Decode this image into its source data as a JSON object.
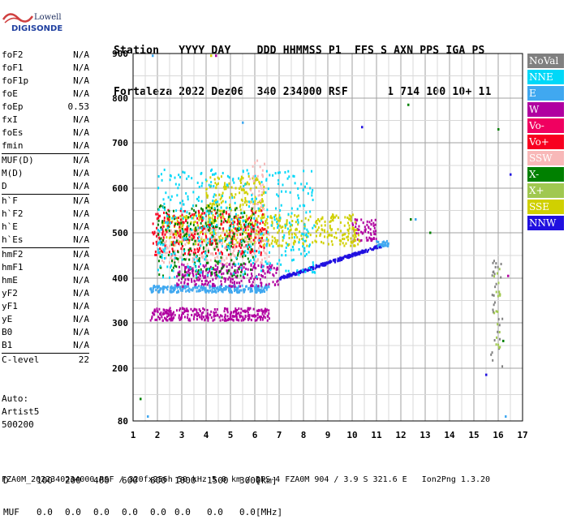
{
  "logo": {
    "line1": "Lowell",
    "line2": "DIGISONDE"
  },
  "header": {
    "labels": "Station   YYYY DAY    DDD HHMMSS P1  FFS S AXN PPS IGA PS",
    "values": "Fortaleza 2022 Dez06  340 234000 RSF      1 714 100 10+ 11"
  },
  "params": [
    {
      "name": "foF2",
      "value": "N/A"
    },
    {
      "name": "foF1",
      "value": "N/A"
    },
    {
      "name": "foF1p",
      "value": "N/A"
    },
    {
      "name": "foE",
      "value": "N/A"
    },
    {
      "name": "foEp",
      "value": "0.53"
    },
    {
      "name": "fxI",
      "value": "N/A"
    },
    {
      "name": "foEs",
      "value": "N/A"
    },
    {
      "name": "fmin",
      "value": "N/A"
    },
    {
      "sep": true
    },
    {
      "name": "MUF(D)",
      "value": "N/A"
    },
    {
      "name": "M(D)",
      "value": "N/A"
    },
    {
      "name": "D",
      "value": "N/A"
    },
    {
      "sep": true
    },
    {
      "name": "h`F",
      "value": "N/A"
    },
    {
      "name": "h`F2",
      "value": "N/A"
    },
    {
      "name": "h`E",
      "value": "N/A"
    },
    {
      "name": "h`Es",
      "value": "N/A"
    },
    {
      "sep": true
    },
    {
      "name": "hmF2",
      "value": "N/A"
    },
    {
      "name": "hmF1",
      "value": "N/A"
    },
    {
      "name": "hmE",
      "value": "N/A"
    },
    {
      "name": "yF2",
      "value": "N/A"
    },
    {
      "name": "yF1",
      "value": "N/A"
    },
    {
      "name": "yE",
      "value": "N/A"
    },
    {
      "name": "B0",
      "value": "N/A"
    },
    {
      "name": "B1",
      "value": "N/A"
    },
    {
      "sep": true
    },
    {
      "name": "C-level",
      "value": "22"
    }
  ],
  "auto": {
    "line1": "Auto:",
    "line2": "Artist5",
    "line3": "500200"
  },
  "legend": [
    {
      "label": "NoVal",
      "color": "#808080"
    },
    {
      "label": "NNE",
      "color": "#00d8f8"
    },
    {
      "label": "E",
      "color": "#40a8f0"
    },
    {
      "label": "W",
      "color": "#b000a0"
    },
    {
      "label": "Vo-",
      "color": "#f00060"
    },
    {
      "label": "Vo+",
      "color": "#f80020"
    },
    {
      "label": "SSW",
      "color": "#f8b8b8"
    },
    {
      "label": "X-",
      "color": "#008000"
    },
    {
      "label": "X+",
      "color": "#a0c850"
    },
    {
      "label": "SSE",
      "color": "#d0d000"
    },
    {
      "label": "NNW",
      "color": "#2010e0"
    }
  ],
  "footer": {
    "d_label": "D",
    "d_values": [
      "100",
      "200",
      "400",
      "600",
      "800",
      "1000",
      "1500",
      "3000"
    ],
    "d_unit": "[km]",
    "muf_label": "MUF",
    "muf_values": [
      "0.0",
      "0.0",
      "0.0",
      "0.0",
      "0.0",
      "0.0",
      "0.0",
      "0.0"
    ],
    "muf_unit": "[MHz]",
    "bottom": "FZA0M_2022340234000.RSF / 320fx256h 50 kHz 5.0 km / DPS-4 FZA0M 904 / 3.9 S 321.6 E   Ion2Png 1.3.20"
  },
  "chart_data": {
    "type": "scatter",
    "xlabel": "",
    "ylabel": "",
    "xlim": [
      1,
      17
    ],
    "ylim": [
      80,
      900
    ],
    "xticks": [
      1,
      2,
      3,
      4,
      5,
      6,
      7,
      8,
      9,
      10,
      11,
      12,
      13,
      14,
      15,
      16,
      17
    ],
    "yticks": [
      80,
      200,
      300,
      400,
      500,
      600,
      700,
      800,
      900
    ],
    "grid": true,
    "legend_position": "right",
    "traces": [
      {
        "name": "NNW",
        "color": "#2010e0",
        "x_range": [
          7.0,
          11.3
        ],
        "y_start": 398,
        "y_end": 472,
        "slope": true
      },
      {
        "name": "E",
        "color": "#40a8f0",
        "x_range": [
          1.7,
          6.6
        ],
        "y_center": 375,
        "y_spread": 8
      },
      {
        "name": "W",
        "color": "#b000a0",
        "x_range": [
          1.7,
          6.6
        ],
        "y_center": 318,
        "y_spread": 14
      },
      {
        "name": "W",
        "color": "#b000a0",
        "x_range": [
          2.8,
          7.0
        ],
        "y_center": 405,
        "y_spread": 25
      },
      {
        "name": "W",
        "color": "#b000a0",
        "x_range": [
          10.0,
          11.0
        ],
        "y_center": 505,
        "y_spread": 25
      },
      {
        "name": "SSE",
        "color": "#d0d000",
        "x_range": [
          2.2,
          10.3
        ],
        "y_center": 505,
        "y_spread": 35
      },
      {
        "name": "SSW",
        "color": "#f8b8b8",
        "x_range": [
          2.0,
          6.6
        ],
        "y_center": 470,
        "y_spread": 40
      },
      {
        "name": "SSE",
        "color": "#d0d000",
        "x_range": [
          4.0,
          6.4
        ],
        "y_center": 585,
        "y_spread": 40
      },
      {
        "name": "SSW",
        "color": "#f8b8b8",
        "x_range": [
          5.8,
          6.4
        ],
        "y_center": 600,
        "y_spread": 60
      },
      {
        "name": "Vo+",
        "color": "#f80020",
        "x_range": [
          1.8,
          6.5
        ],
        "y_center": 500,
        "y_spread": 50
      },
      {
        "name": "X-",
        "color": "#008000",
        "x_range": [
          2.0,
          6.0
        ],
        "y_center": 480,
        "y_spread": 80
      },
      {
        "name": "NNE",
        "color": "#00d8f8",
        "x_range": [
          2.0,
          8.5
        ],
        "y_center": 520,
        "y_spread": 120
      },
      {
        "name": "E",
        "color": "#40a8f0",
        "x_range": [
          11.0,
          11.5
        ],
        "y_center": 475,
        "y_spread": 6
      },
      {
        "name": "NoVal",
        "color": "#808080",
        "x_range": [
          15.7,
          16.2
        ],
        "y_center": 320,
        "y_spread": 120
      },
      {
        "name": "X+",
        "color": "#a0c850",
        "x_range": [
          15.8,
          16.1
        ],
        "y_center": 330,
        "y_spread": 90
      }
    ],
    "isolated_points": [
      {
        "x": 1.3,
        "y": 130,
        "color": "#008000"
      },
      {
        "x": 1.6,
        "y": 90,
        "color": "#40a8f0"
      },
      {
        "x": 1.8,
        "y": 895,
        "color": "#40a8f0"
      },
      {
        "x": 4.2,
        "y": 895,
        "color": "#d0d000"
      },
      {
        "x": 4.4,
        "y": 895,
        "color": "#b000a0"
      },
      {
        "x": 5.5,
        "y": 745,
        "color": "#40a8f0"
      },
      {
        "x": 10.4,
        "y": 735,
        "color": "#2010e0"
      },
      {
        "x": 12.3,
        "y": 785,
        "color": "#008000"
      },
      {
        "x": 12.4,
        "y": 530,
        "color": "#008000"
      },
      {
        "x": 13.2,
        "y": 500,
        "color": "#008000"
      },
      {
        "x": 12.6,
        "y": 530,
        "color": "#40a8f0"
      },
      {
        "x": 16.0,
        "y": 730,
        "color": "#008000"
      },
      {
        "x": 16.5,
        "y": 630,
        "color": "#2010e0"
      },
      {
        "x": 15.5,
        "y": 185,
        "color": "#2010e0"
      },
      {
        "x": 16.2,
        "y": 260,
        "color": "#008000"
      },
      {
        "x": 16.4,
        "y": 405,
        "color": "#b000a0"
      },
      {
        "x": 16.3,
        "y": 90,
        "color": "#40a8f0"
      }
    ]
  }
}
